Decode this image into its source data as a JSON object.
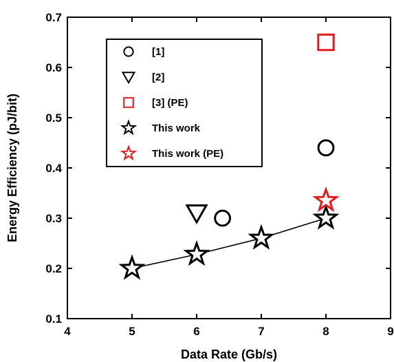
{
  "chart_data": {
    "type": "scatter",
    "xlabel": "Data Rate (Gb/s)",
    "ylabel": "Energy Efficiency (pJ/bit)",
    "xlim": [
      4,
      9
    ],
    "ylim": [
      0.1,
      0.7
    ],
    "x_ticks": [
      "4",
      "5",
      "6",
      "7",
      "8",
      "9"
    ],
    "y_ticks": [
      "0.1",
      "0.2",
      "0.3",
      "0.4",
      "0.5",
      "0.6",
      "0.7"
    ],
    "grid": false,
    "legend_position": "upper-left",
    "series": [
      {
        "name": "[1]",
        "marker": "circle",
        "color": "#000000",
        "points": [
          {
            "x": 6.4,
            "y": 0.3
          },
          {
            "x": 8.0,
            "y": 0.44
          }
        ]
      },
      {
        "name": "[2]",
        "marker": "triangle-down",
        "color": "#000000",
        "points": [
          {
            "x": 6.0,
            "y": 0.31
          }
        ]
      },
      {
        "name": "[3] (PE)",
        "marker": "square",
        "color": "#e8191c",
        "points": [
          {
            "x": 8.0,
            "y": 0.65
          }
        ]
      },
      {
        "name": "This work",
        "marker": "star",
        "color": "#000000",
        "line": true,
        "points": [
          {
            "x": 5.0,
            "y": 0.2
          },
          {
            "x": 6.0,
            "y": 0.228
          },
          {
            "x": 7.0,
            "y": 0.26
          },
          {
            "x": 8.0,
            "y": 0.3
          }
        ]
      },
      {
        "name": "This work (PE)",
        "marker": "star",
        "color": "#e8191c",
        "points": [
          {
            "x": 8.0,
            "y": 0.335
          }
        ]
      }
    ]
  }
}
